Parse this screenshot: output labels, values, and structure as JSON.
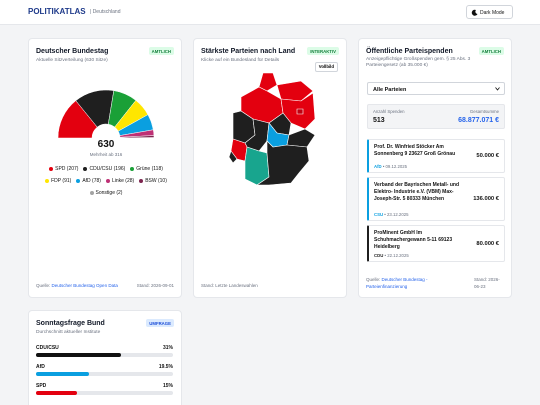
{
  "header": {
    "logo": "POLITIKATLAS",
    "region": "| Deutschland",
    "dark_mode": "Dark Mode"
  },
  "bundestag": {
    "title": "Deutscher Bundestag",
    "badge": "AMTLICH",
    "subtitle": "Aktuelle Sitzverteilung (630 Sitze)",
    "total_seats": 630,
    "majority": "Mehrheit ab 316",
    "chart_data": {
      "type": "hemicycle",
      "categories": [
        "SPD (207)",
        "CDU/CSU (196)",
        "Grüne (118)",
        "FDP (91)",
        "AfD (78)",
        "Linke (28)",
        "BSW (10)",
        "Sonstige (2)"
      ],
      "values": [
        207,
        196,
        118,
        91,
        78,
        28,
        10,
        2
      ],
      "colors": [
        "#e3000f",
        "#1f1f1f",
        "#1aa037",
        "#ffe600",
        "#0a9fe0",
        "#be3075",
        "#7d254f",
        "#a3a3a3"
      ]
    },
    "source_label": "Quelle:",
    "source": "Deutscher Bundestag Open Data",
    "stand": "Stand: 2026-09-01"
  },
  "map": {
    "title": "Stärkste Parteien nach Land",
    "badge": "INTERAKTIV",
    "subtitle": "Klicke auf ein Bundesland für Details",
    "button": "Vollbild",
    "footer": "Stand: Letzte Landeswahlen"
  },
  "donations": {
    "title": "Öffentliche Parteispenden",
    "badge": "AMTLICH",
    "subtitle": "Anzeigepflichtige Großspenden gem. § 25 Abs. 3 Parteiengesetz (ab 35.000 €)",
    "filter": "Alle Parteien",
    "count_label": "Anzahl Spenden",
    "count": 513,
    "total_label": "Gesamtsumme",
    "total": "68.877.071 €",
    "items": [
      {
        "donor": "Prof. Dr. Winfried Stöcker Am Sonnenberg 9 23627 Groß Grönau",
        "amount": "50.000 €",
        "party": "AfD",
        "date": "• 09.12.2025",
        "color": "#0a9fe0"
      },
      {
        "donor": "Verband der Bayrischen Metall- und Elektro- Industrie e.V. (VBM) Max-Joseph-Str. 5 80333 München",
        "amount": "136.000 €",
        "party": "CSU",
        "date": "• 23.12.2025",
        "color": "#0a9fe0"
      },
      {
        "donor": "ProMinent GmbH Im Schuhmachergewann 5-11 69123 Heidelberg",
        "amount": "80.000 €",
        "party": "CDU",
        "date": "• 22.12.2025",
        "color": "#1f1f1f"
      }
    ],
    "source_label": "Quelle:",
    "source": "Deutscher Bundestag - Parteienfinanzierung",
    "stand": "Stand: 2026-06-23"
  },
  "poll": {
    "title": "Sonntagsfrage Bund",
    "badge": "UMFRAGE",
    "subtitle": "Durchschnitt aktueller Institute",
    "chart_data": {
      "type": "bar",
      "categories": [
        "CDU/CSU",
        "AfD",
        "SPD"
      ],
      "values": [
        31,
        19.5,
        15
      ],
      "value_labels": [
        "31%",
        "19.5%",
        "15%"
      ],
      "colors": [
        "#111111",
        "#0a9fe0",
        "#e3000f"
      ],
      "xlim": [
        0,
        50
      ]
    }
  }
}
